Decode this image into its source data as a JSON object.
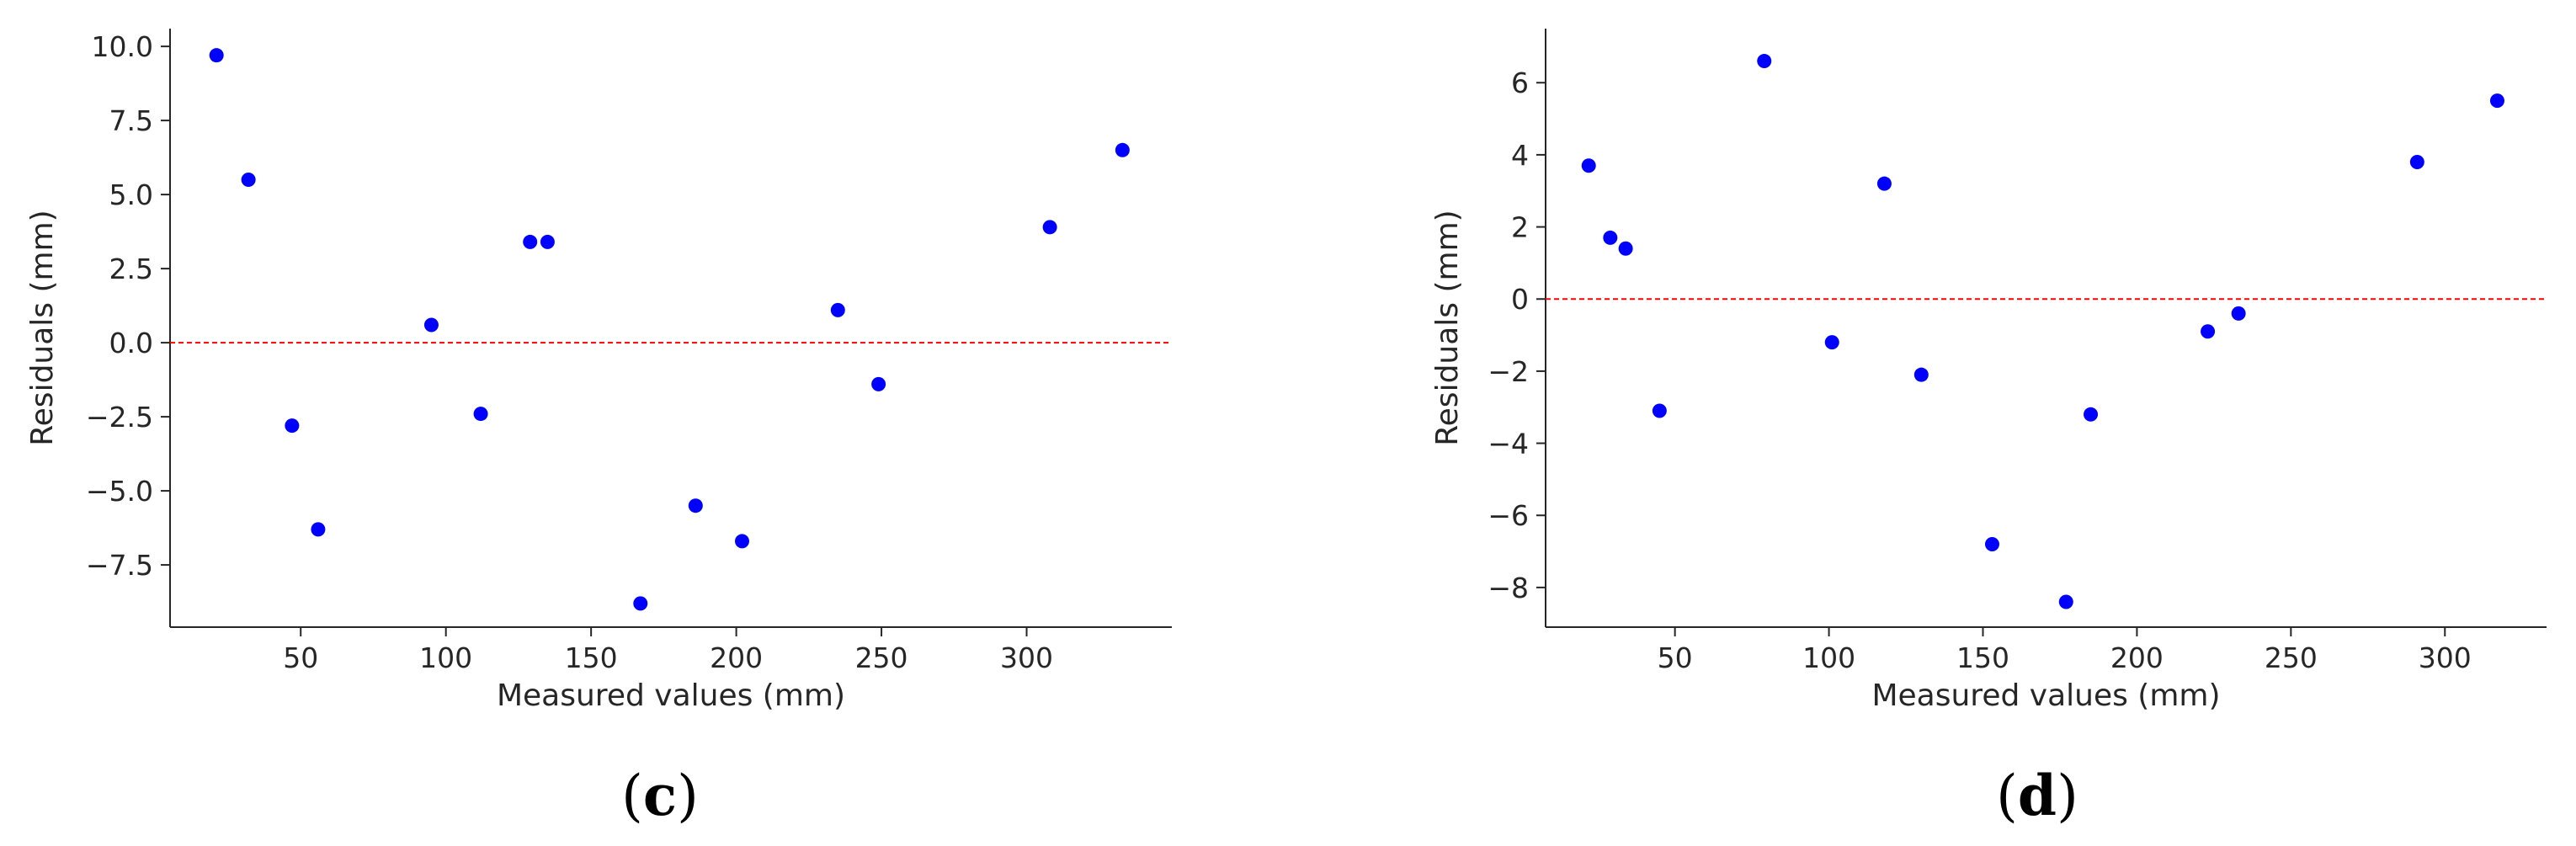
{
  "chart_data": [
    {
      "type": "scatter",
      "panel_label": "(c)",
      "xlabel": "Measured values (mm)",
      "ylabel": "Residuals (mm)",
      "xlim": [
        5,
        350
      ],
      "ylim": [
        -9.6,
        10.6
      ],
      "xticks": [
        50,
        100,
        150,
        200,
        250,
        300
      ],
      "yticks": [
        -7.5,
        -5.0,
        -2.5,
        0.0,
        2.5,
        5.0,
        7.5,
        10.0
      ],
      "ytick_labels": [
        "−7.5",
        "−5.0",
        "−2.5",
        "0.0",
        "2.5",
        "5.0",
        "7.5",
        "10.0"
      ],
      "grid": false,
      "reference_line": {
        "y": 0,
        "color": "#ff0000",
        "style": "dashed"
      },
      "point_color": "#0000ff",
      "series": [
        {
          "x": [
            21,
            32,
            47,
            56,
            95,
            112,
            129,
            135,
            167,
            186,
            202,
            235,
            249,
            308,
            333
          ],
          "y": [
            9.7,
            5.5,
            -2.8,
            -6.3,
            0.6,
            -2.4,
            3.4,
            3.4,
            -8.8,
            -5.5,
            -6.7,
            1.1,
            -1.4,
            3.9,
            6.5
          ]
        }
      ]
    },
    {
      "type": "scatter",
      "panel_label": "(d)",
      "xlabel": "Measured values (mm)",
      "ylabel": "Residuals (mm)",
      "xlim": [
        8,
        333
      ],
      "ylim": [
        -9.1,
        7.5
      ],
      "xticks": [
        50,
        100,
        150,
        200,
        250,
        300
      ],
      "yticks": [
        -8,
        -6,
        -4,
        -2,
        0,
        2,
        4,
        6
      ],
      "ytick_labels": [
        "−8",
        "−6",
        "−4",
        "−2",
        "0",
        "2",
        "4",
        "6"
      ],
      "grid": false,
      "reference_line": {
        "y": 0,
        "color": "#ff0000",
        "style": "dashed"
      },
      "point_color": "#0000ff",
      "series": [
        {
          "x": [
            22,
            29,
            34,
            45,
            79,
            101,
            118,
            130,
            153,
            177,
            185,
            223,
            233,
            291,
            317
          ],
          "y": [
            3.7,
            1.7,
            1.4,
            -3.1,
            6.6,
            -1.2,
            3.2,
            -2.1,
            -6.8,
            -8.4,
            -3.2,
            -0.9,
            -0.4,
            3.8,
            5.5
          ]
        }
      ]
    }
  ]
}
